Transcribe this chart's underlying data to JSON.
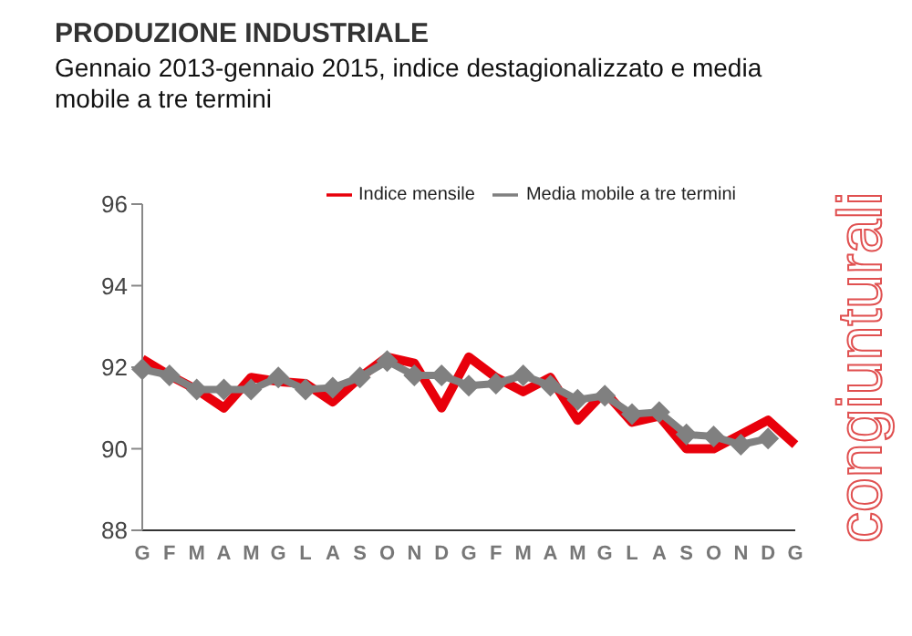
{
  "chart_data": {
    "type": "line",
    "title": "PRODUZIONE INDUSTRIALE",
    "subtitle": "Gennaio 2013-gennaio 2015, indice destagionalizzato e media mobile a tre termini",
    "categories": [
      "G",
      "F",
      "M",
      "A",
      "M",
      "G",
      "L",
      "A",
      "S",
      "O",
      "N",
      "D",
      "G",
      "F",
      "M",
      "A",
      "M",
      "G",
      "L",
      "A",
      "S",
      "O",
      "N",
      "D",
      "G"
    ],
    "series": [
      {
        "name": "Indice mensile",
        "color": "#e8000b",
        "marker": "none",
        "values": [
          92.2,
          91.8,
          91.45,
          91.0,
          91.75,
          91.65,
          91.6,
          91.15,
          91.75,
          92.25,
          92.1,
          91.0,
          92.25,
          91.75,
          91.4,
          91.75,
          90.7,
          91.4,
          90.65,
          90.8,
          90.0,
          90.0,
          90.35,
          90.7,
          90.1
        ]
      },
      {
        "name": "Media mobile a tre termini",
        "color": "#808080",
        "marker": "diamond",
        "values": [
          91.95,
          91.8,
          91.45,
          91.45,
          91.45,
          91.75,
          91.45,
          91.5,
          91.75,
          92.15,
          91.8,
          91.8,
          91.55,
          91.6,
          91.8,
          91.55,
          91.2,
          91.3,
          90.85,
          90.9,
          90.35,
          90.3,
          90.1,
          90.25,
          null
        ]
      }
    ],
    "ylim": [
      88,
      96
    ],
    "yticks": [
      88,
      90,
      92,
      94,
      96
    ],
    "legend": "top",
    "annotations": [
      "congiunturali"
    ]
  }
}
